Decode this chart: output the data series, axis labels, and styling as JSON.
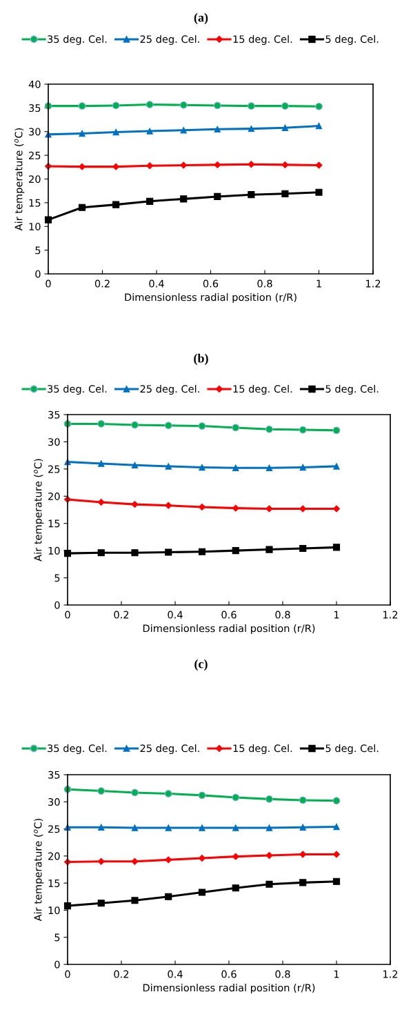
{
  "chart_data": [
    {
      "type": "line",
      "title": "(a)",
      "xlabel": "Dimensionless radial position (r/R)",
      "ylabel": "Air temperature ($^{o}$C)",
      "x": [
        0,
        0.125,
        0.25,
        0.375,
        0.5,
        0.625,
        0.75,
        0.875,
        1
      ],
      "xlim": [
        0,
        1.2
      ],
      "xticks": [
        0,
        {
          "value": 0.2,
          "label": "0.2"
        },
        {
          "value": 0.4,
          "label": "0.4"
        },
        {
          "value": 0.6,
          "label": "0.6"
        },
        {
          "value": 0.8,
          "label": "0.8"
        },
        1,
        {
          "value": 1.2,
          "label": "1.2"
        }
      ],
      "ylim": [
        0,
        40
      ],
      "yticks": [
        0,
        5,
        10,
        15,
        20,
        25,
        30,
        35,
        40
      ],
      "grid": false,
      "legend": "top",
      "series": [
        {
          "name": "35 deg. Cel.",
          "color": "#00b050",
          "marker": "circle",
          "values": [
            35.4,
            35.4,
            35.5,
            35.7,
            35.6,
            35.5,
            35.4,
            35.4,
            35.3
          ]
        },
        {
          "name": "25 deg. Cel.",
          "color": "#0070c0",
          "marker": "triangle",
          "values": [
            29.4,
            29.6,
            29.9,
            30.1,
            30.3,
            30.5,
            30.6,
            30.8,
            31.2
          ]
        },
        {
          "name": "15 deg. Cel.",
          "color": "#ff0000",
          "marker": "diamond",
          "values": [
            22.7,
            22.6,
            22.6,
            22.8,
            22.9,
            23.0,
            23.1,
            23.0,
            22.9
          ]
        },
        {
          "name": "5 deg. Cel.",
          "color": "#000000",
          "marker": "square",
          "values": [
            11.4,
            14.0,
            14.6,
            15.3,
            15.8,
            16.3,
            16.7,
            16.9,
            17.2
          ]
        }
      ]
    },
    {
      "type": "line",
      "title": "(b)",
      "xlabel": "Dimensionless radial position (r/R)",
      "ylabel": "Air temperature ($^{o}$C)",
      "x": [
        0,
        0.125,
        0.25,
        0.375,
        0.5,
        0.625,
        0.75,
        0.875,
        1
      ],
      "xlim": [
        0,
        1.2
      ],
      "xticks": [
        0,
        {
          "value": 0.2,
          "label": "0.2"
        },
        {
          "value": 0.4,
          "label": "0.4"
        },
        {
          "value": 0.6,
          "label": "0.6"
        },
        {
          "value": 0.8,
          "label": "0.8"
        },
        1,
        {
          "value": 1.2,
          "label": "1.2"
        }
      ],
      "ylim": [
        0,
        35
      ],
      "yticks": [
        0,
        5,
        10,
        15,
        20,
        25,
        30,
        35
      ],
      "grid": false,
      "legend": "top",
      "series": [
        {
          "name": "35 deg. Cel.",
          "color": "#00b050",
          "marker": "circle",
          "values": [
            33.3,
            33.3,
            33.1,
            33.0,
            32.9,
            32.6,
            32.3,
            32.2,
            32.1
          ]
        },
        {
          "name": "25 deg. Cel.",
          "color": "#0070c0",
          "marker": "triangle",
          "values": [
            26.3,
            26.0,
            25.7,
            25.5,
            25.3,
            25.2,
            25.2,
            25.3,
            25.5
          ]
        },
        {
          "name": "15 deg. Cel.",
          "color": "#ff0000",
          "marker": "diamond",
          "values": [
            19.4,
            18.9,
            18.5,
            18.3,
            18.0,
            17.8,
            17.7,
            17.7,
            17.7
          ]
        },
        {
          "name": "5 deg. Cel.",
          "color": "#000000",
          "marker": "square",
          "values": [
            9.5,
            9.6,
            9.6,
            9.7,
            9.8,
            10.0,
            10.2,
            10.4,
            10.6
          ]
        }
      ]
    },
    {
      "type": "line",
      "title": "(c)",
      "xlabel": "Dimensionless radial position (r/R)",
      "ylabel": "Air temperature ($^{o}$C)",
      "x": [
        0,
        0.125,
        0.25,
        0.375,
        0.5,
        0.625,
        0.75,
        0.875,
        1
      ],
      "xlim": [
        0,
        1.2
      ],
      "xticks": [
        0,
        {
          "value": 0.2,
          "label": "0.2"
        },
        {
          "value": 0.4,
          "label": "0.4"
        },
        {
          "value": 0.6,
          "label": "0.6"
        },
        {
          "value": 0.8,
          "label": "0.8"
        },
        1,
        {
          "value": 1.2,
          "label": "1.2"
        }
      ],
      "ylim": [
        0,
        35
      ],
      "yticks": [
        0,
        5,
        10,
        15,
        20,
        25,
        30,
        35
      ],
      "grid": false,
      "legend": "top",
      "series": [
        {
          "name": "35 deg. Cel.",
          "color": "#00b050",
          "marker": "circle",
          "values": [
            32.3,
            32.0,
            31.7,
            31.5,
            31.2,
            30.8,
            30.5,
            30.3,
            30.2
          ]
        },
        {
          "name": "25 deg. Cel.",
          "color": "#0070c0",
          "marker": "triangle",
          "values": [
            25.3,
            25.3,
            25.2,
            25.2,
            25.2,
            25.2,
            25.2,
            25.3,
            25.4
          ]
        },
        {
          "name": "15 deg. Cel.",
          "color": "#ff0000",
          "marker": "diamond",
          "values": [
            18.9,
            19.0,
            19.0,
            19.3,
            19.6,
            19.9,
            20.1,
            20.3,
            20.3
          ]
        },
        {
          "name": "5 deg. Cel.",
          "color": "#000000",
          "marker": "square",
          "values": [
            10.8,
            11.3,
            11.8,
            12.5,
            13.3,
            14.1,
            14.8,
            15.1,
            15.3
          ]
        }
      ]
    }
  ]
}
